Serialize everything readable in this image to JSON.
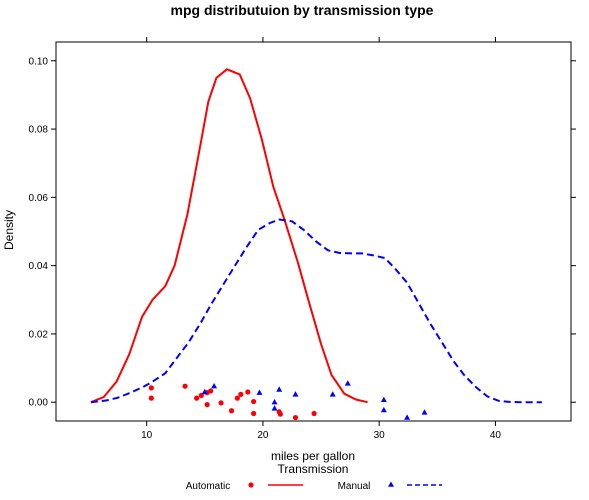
{
  "chart_data": {
    "type": "line",
    "title": "mpg distributuion by transmission type",
    "xlabel": "miles per gallon",
    "ylabel": "Density",
    "xlim": [
      2.2,
      46.5
    ],
    "ylim": [
      -0.0055,
      0.1055
    ],
    "x_ticks": [
      10,
      20,
      30,
      40
    ],
    "y_ticks": [
      0.0,
      0.02,
      0.04,
      0.06,
      0.08,
      0.1
    ],
    "y_tick_labels": [
      "0.00",
      "0.02",
      "0.04",
      "0.06",
      "0.08",
      "0.10"
    ],
    "grid": false,
    "legend": {
      "title": "Transmission",
      "position": "bottom",
      "entries": [
        {
          "label": "Automatic",
          "color": "#ff0000",
          "marker": "circle",
          "line": "solid"
        },
        {
          "label": "Manual",
          "color": "#0000ff",
          "marker": "triangle",
          "line": "dashed"
        }
      ]
    },
    "series": [
      {
        "name": "Automatic",
        "color": "#ff0000",
        "line_style": "solid",
        "density": [
          [
            5.2,
            0.0
          ],
          [
            6.3,
            0.0015
          ],
          [
            7.4,
            0.006
          ],
          [
            8.5,
            0.014
          ],
          [
            9.6,
            0.025
          ],
          [
            10.5,
            0.03
          ],
          [
            11.6,
            0.034
          ],
          [
            12.4,
            0.04
          ],
          [
            13.5,
            0.055
          ],
          [
            14.6,
            0.075
          ],
          [
            15.3,
            0.088
          ],
          [
            16.0,
            0.095
          ],
          [
            16.9,
            0.0975
          ],
          [
            18.0,
            0.096
          ],
          [
            18.9,
            0.089
          ],
          [
            19.9,
            0.077
          ],
          [
            20.9,
            0.063
          ],
          [
            21.8,
            0.054
          ],
          [
            23.0,
            0.041
          ],
          [
            23.9,
            0.03
          ],
          [
            25.0,
            0.017
          ],
          [
            25.9,
            0.008
          ],
          [
            27.0,
            0.0025
          ],
          [
            28.0,
            0.0008
          ],
          [
            29.0,
            0.0
          ]
        ],
        "points": [
          [
            10.4,
            0.0042
          ],
          [
            10.4,
            0.0012
          ],
          [
            13.3,
            0.0047
          ],
          [
            14.3,
            0.0012
          ],
          [
            14.7,
            0.002
          ],
          [
            15.2,
            0.0028
          ],
          [
            15.2,
            -0.0007
          ],
          [
            15.5,
            0.0033
          ],
          [
            16.4,
            -0.0002
          ],
          [
            17.3,
            -0.0025
          ],
          [
            17.8,
            0.0012
          ],
          [
            18.1,
            0.0023
          ],
          [
            18.7,
            0.003
          ],
          [
            19.2,
            -0.0033
          ],
          [
            19.2,
            0.0002
          ],
          [
            21.4,
            -0.0028
          ],
          [
            21.5,
            -0.0035
          ],
          [
            22.8,
            -0.0045
          ],
          [
            24.4,
            -0.0033
          ]
        ]
      },
      {
        "name": "Manual",
        "color": "#0000ff",
        "line_style": "dashed",
        "density": [
          [
            5.2,
            0.0
          ],
          [
            6.5,
            0.0005
          ],
          [
            7.5,
            0.0013
          ],
          [
            8.6,
            0.0028
          ],
          [
            9.7,
            0.0045
          ],
          [
            10.5,
            0.006
          ],
          [
            11.6,
            0.0085
          ],
          [
            12.6,
            0.013
          ],
          [
            13.6,
            0.0175
          ],
          [
            14.6,
            0.023
          ],
          [
            15.6,
            0.029
          ],
          [
            16.6,
            0.0345
          ],
          [
            17.6,
            0.04
          ],
          [
            18.6,
            0.0455
          ],
          [
            19.6,
            0.0505
          ],
          [
            20.6,
            0.0525
          ],
          [
            21.4,
            0.0535
          ],
          [
            22.5,
            0.053
          ],
          [
            23.5,
            0.0505
          ],
          [
            24.6,
            0.047
          ],
          [
            25.6,
            0.0445
          ],
          [
            26.6,
            0.0437
          ],
          [
            27.6,
            0.0436
          ],
          [
            28.5,
            0.0436
          ],
          [
            29.5,
            0.043
          ],
          [
            30.5,
            0.0422
          ],
          [
            31.4,
            0.039
          ],
          [
            32.4,
            0.035
          ],
          [
            33.4,
            0.029
          ],
          [
            34.4,
            0.023
          ],
          [
            35.4,
            0.0175
          ],
          [
            36.4,
            0.012
          ],
          [
            37.3,
            0.008
          ],
          [
            38.3,
            0.0045
          ],
          [
            39.3,
            0.0017
          ],
          [
            40.3,
            0.0004
          ],
          [
            41.2,
            0.0001
          ],
          [
            42.2,
            0.0
          ],
          [
            43.2,
            0.0
          ],
          [
            44.0,
            0.0
          ]
        ],
        "points": [
          [
            15.0,
            0.003
          ],
          [
            15.8,
            0.0047
          ],
          [
            19.7,
            0.0028
          ],
          [
            21.0,
            0.0
          ],
          [
            21.0,
            -0.0018
          ],
          [
            21.4,
            0.0037
          ],
          [
            22.8,
            0.0023
          ],
          [
            26.0,
            0.0023
          ],
          [
            27.3,
            0.0055
          ],
          [
            30.4,
            0.0007
          ],
          [
            30.4,
            -0.0023
          ],
          [
            32.4,
            -0.0045
          ],
          [
            33.9,
            -0.003
          ]
        ]
      }
    ]
  }
}
